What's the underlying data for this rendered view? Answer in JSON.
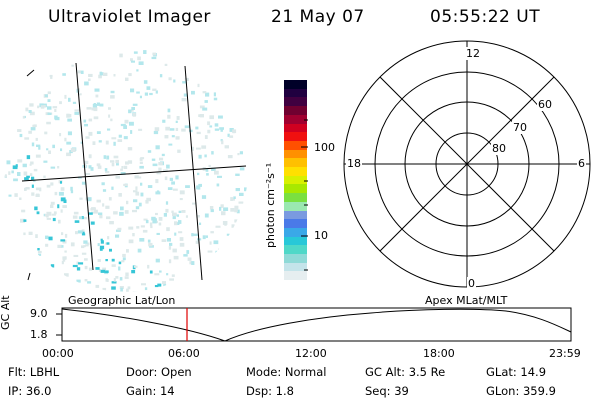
{
  "header": {
    "title": "Ultraviolet Imager",
    "date": "21 May 07",
    "time": "05:55:22 UT"
  },
  "colorbar": {
    "unit_label": "photon cm⁻²s⁻¹",
    "tick_labels": [
      "100",
      "10"
    ],
    "colors": [
      "#e6eef0",
      "#c4e4ea",
      "#8fdad7",
      "#4fd8c8",
      "#28c8d8",
      "#3aa8e8",
      "#4a7ae8",
      "#7a9ae0",
      "#9ae8b0",
      "#7ae040",
      "#a8e800",
      "#d8f000",
      "#ffe000",
      "#ffc000",
      "#ff9000",
      "#ff5000",
      "#f01010",
      "#d00020",
      "#a00030",
      "#700030",
      "#400040",
      "#200040",
      "#000028"
    ]
  },
  "geo_image": {
    "colors": {
      "low": "#dde9ea",
      "mid": "#b3e7ec",
      "high": "#37c6d7"
    }
  },
  "polar_plot": {
    "mlt_labels": {
      "top": "12",
      "left": "18",
      "right": "6",
      "bottom": "0"
    },
    "lat_labels": [
      "60",
      "70",
      "80"
    ]
  },
  "timeline": {
    "axis_label": "GC Alt",
    "y_ticks": [
      "9.0",
      "1.8"
    ],
    "left_title": "Geographic Lat/Lon",
    "right_title": "Apex  MLat/MLT",
    "x_ticks": [
      "00:00",
      "06:00",
      "12:00",
      "18:00",
      "23:59"
    ],
    "current_marker_color": "#e00000"
  },
  "info": {
    "flt": "Flt: LBHL",
    "ip": "IP: 36.0",
    "door": "Door: Open",
    "gain": "Gain: 14",
    "mode": "Mode: Normal",
    "dsp": "Dsp:    1.8",
    "gc_alt": "GC Alt: 3.5 Re",
    "seq": "Seq: 39",
    "glat": "GLat:  14.9",
    "glon": "GLon: 359.9"
  }
}
